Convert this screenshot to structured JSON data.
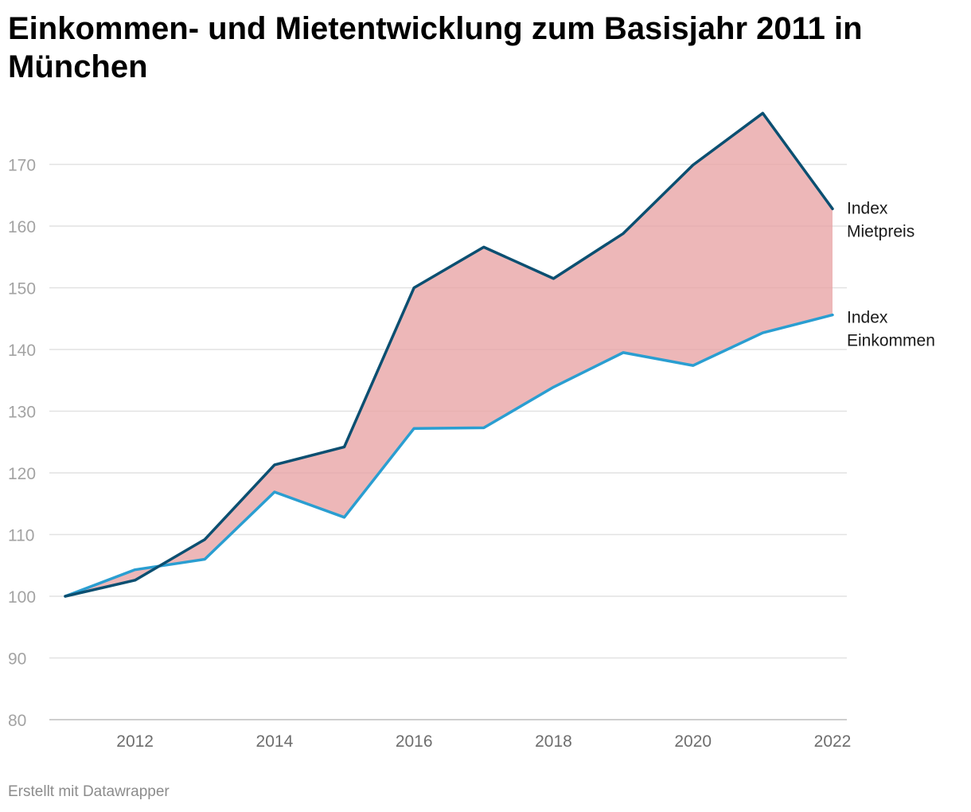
{
  "title": "Einkommen- und Mietentwicklung zum Basisjahr 2011 in München",
  "footer": "Erstellt mit Datawrapper",
  "colors": {
    "mietpreis": "#0b4f71",
    "einkommen": "#2a9ed1",
    "gap_fill": "#e8a3a4",
    "grid": "#e2e2e2"
  },
  "chart_data": {
    "type": "line",
    "title": "Einkommen- und Mietentwicklung zum Basisjahr 2011 in München",
    "x": [
      2011,
      2012,
      2013,
      2014,
      2015,
      2016,
      2017,
      2018,
      2019,
      2020,
      2021,
      2022
    ],
    "series": [
      {
        "name": "Index Mietpreis",
        "label_lines": [
          "Index",
          "Mietpreis"
        ],
        "values": [
          100,
          102.6,
          109.2,
          121.3,
          124.2,
          150.0,
          156.6,
          151.5,
          158.8,
          169.9,
          178.3,
          162.8
        ]
      },
      {
        "name": "Index Einkommen",
        "label_lines": [
          "Index",
          "Einkommen"
        ],
        "values": [
          100,
          104.3,
          106.0,
          116.9,
          112.8,
          127.2,
          127.3,
          133.9,
          139.5,
          137.4,
          142.7,
          145.6
        ]
      }
    ],
    "area_between_series": true,
    "ylim": [
      80,
      180
    ],
    "yticks": [
      80,
      90,
      100,
      110,
      120,
      130,
      140,
      150,
      160,
      170
    ],
    "xticks": [
      2012,
      2014,
      2016,
      2018,
      2020,
      2022
    ],
    "xlim": [
      2011,
      2022
    ],
    "grid": "horizontal",
    "legend": "direct labels at right end of lines"
  }
}
